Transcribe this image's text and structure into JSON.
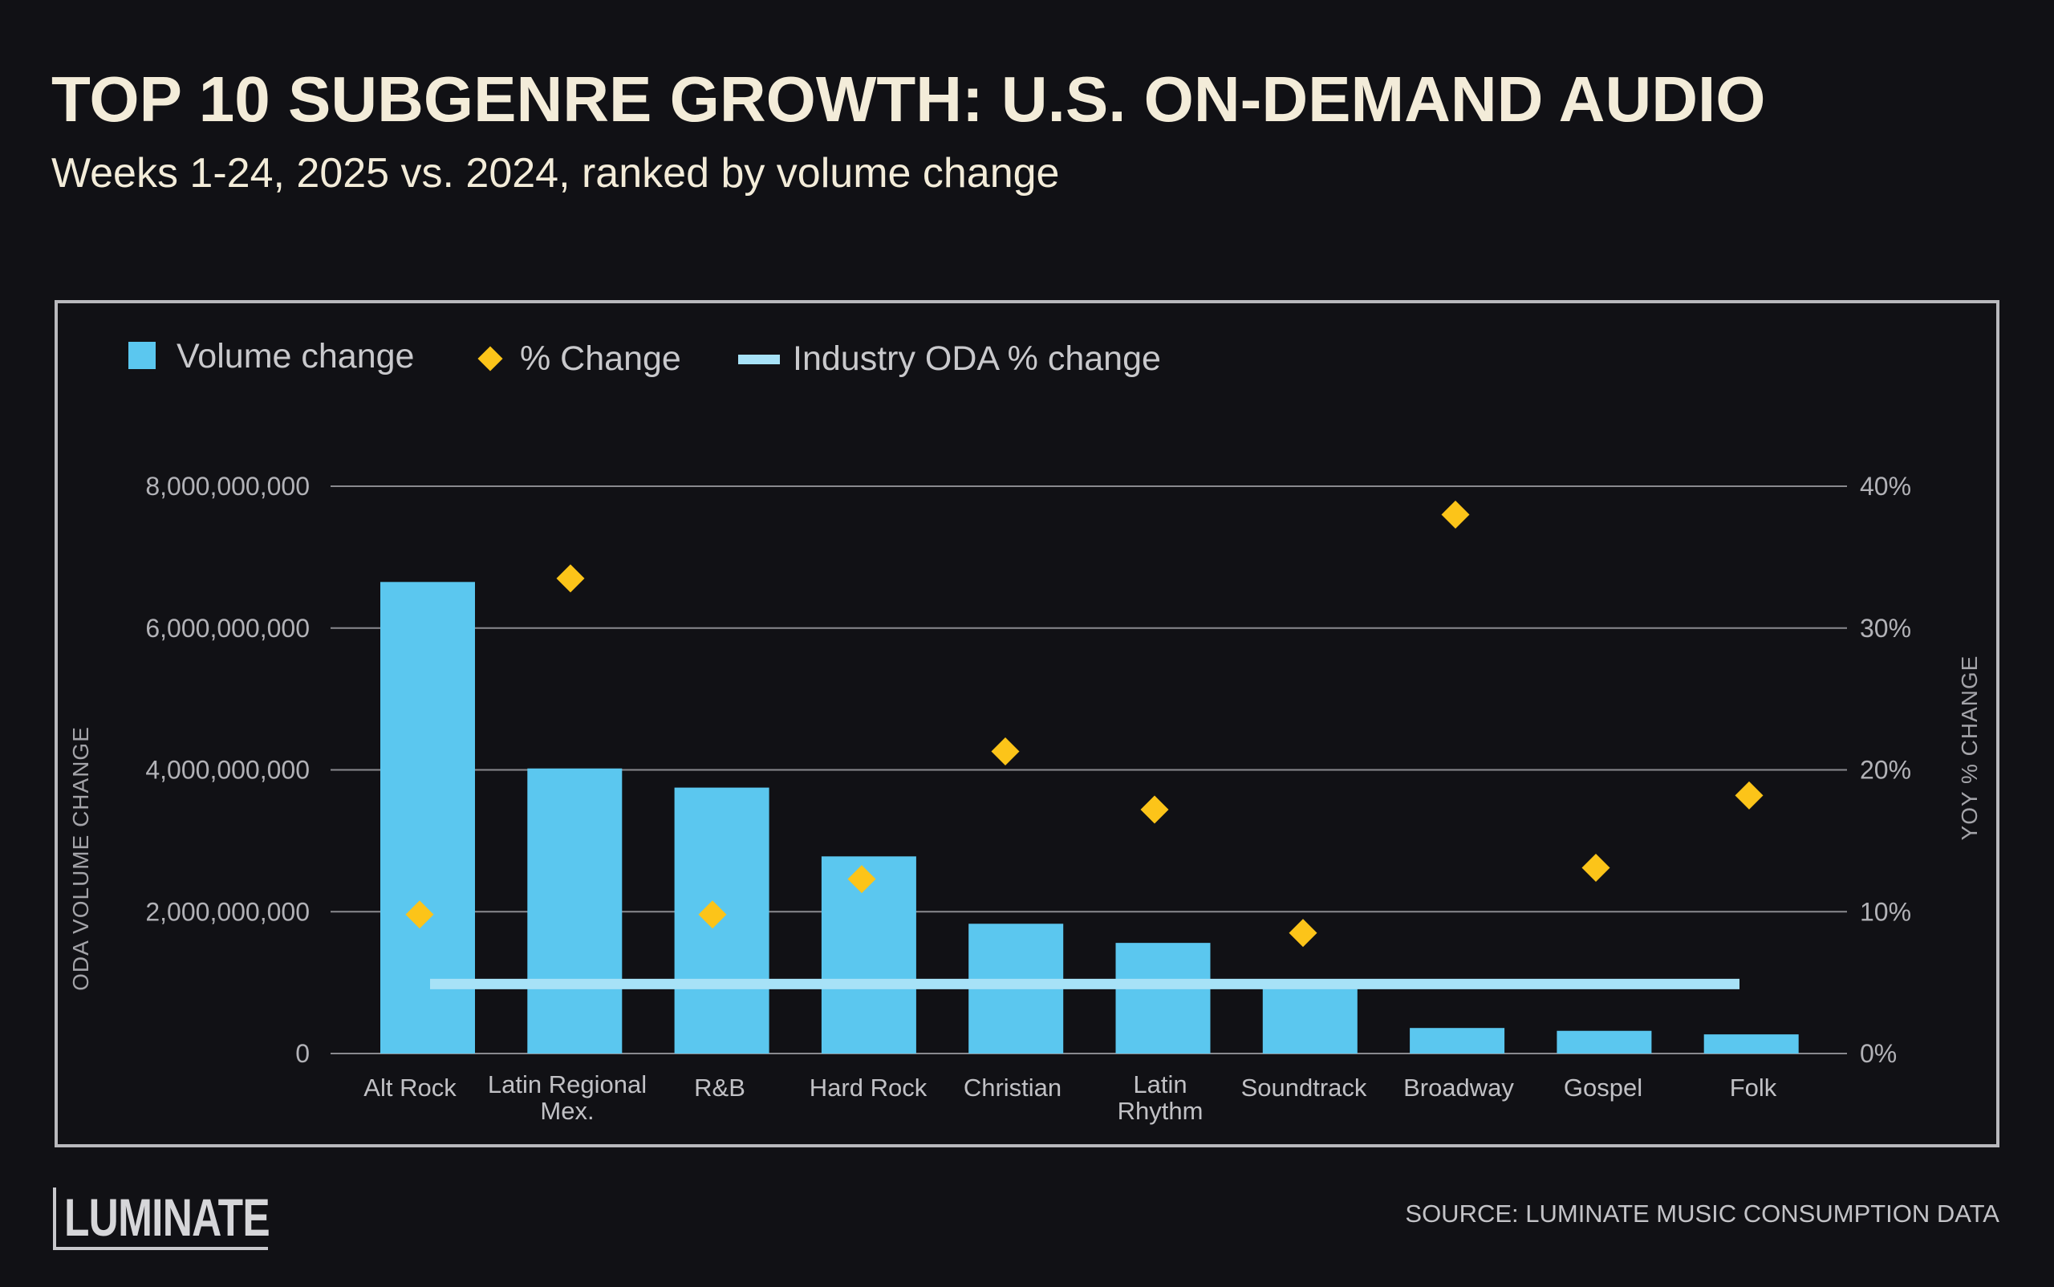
{
  "title": "TOP 10 SUBGENRE GROWTH: U.S. ON-DEMAND AUDIO",
  "subtitle": "Weeks 1-24, 2025 vs. 2024, ranked by volume change",
  "legend": {
    "volume": "Volume change",
    "pct": "% Change",
    "industry": "Industry ODA % change"
  },
  "logo": "LUMINATE",
  "source": "SOURCE: LUMINATE MUSIC CONSUMPTION DATA",
  "colors": {
    "bar": "#5bc7ef",
    "diamond": "#fcc419",
    "industry_line": "#a7e2f7",
    "grid": "#8a8a8f"
  },
  "chart_data": {
    "type": "bar",
    "title": "TOP 10 SUBGENRE GROWTH: U.S. ON-DEMAND AUDIO",
    "categories": [
      [
        "Alt Rock"
      ],
      [
        "Latin Regional",
        "Mex."
      ],
      [
        "R&B"
      ],
      [
        "Hard Rock"
      ],
      [
        "Christian"
      ],
      [
        "Latin",
        "Rhythm"
      ],
      [
        "Soundtrack"
      ],
      [
        "Broadway"
      ],
      [
        "Gospel"
      ],
      [
        "Folk"
      ]
    ],
    "series": [
      {
        "name": "Volume change",
        "type": "bar",
        "axis": "left",
        "values": [
          6650000000,
          4020000000,
          3750000000,
          2780000000,
          1830000000,
          1560000000,
          1000000000,
          360000000,
          320000000,
          270000000
        ]
      },
      {
        "name": "% Change",
        "type": "scatter",
        "axis": "right",
        "values": [
          9.8,
          33.5,
          9.8,
          12.3,
          21.3,
          17.2,
          8.5,
          38.0,
          13.1,
          18.2
        ]
      },
      {
        "name": "Industry ODA % change",
        "type": "line",
        "axis": "right",
        "value": 4.9
      }
    ],
    "ylabel_left": "ODA VOLUME CHANGE",
    "ylabel_right": "YOY % CHANGE",
    "ylim_left": [
      0,
      8000000000
    ],
    "ylim_right": [
      0,
      40
    ],
    "yticks_left": [
      "0",
      "2,000,000,000",
      "4,000,000,000",
      "6,000,000,000",
      "8,000,000,000"
    ],
    "yticks_right": [
      "0%",
      "10%",
      "20%",
      "30%",
      "40%"
    ],
    "grid": true,
    "legend_position": "top-left"
  }
}
